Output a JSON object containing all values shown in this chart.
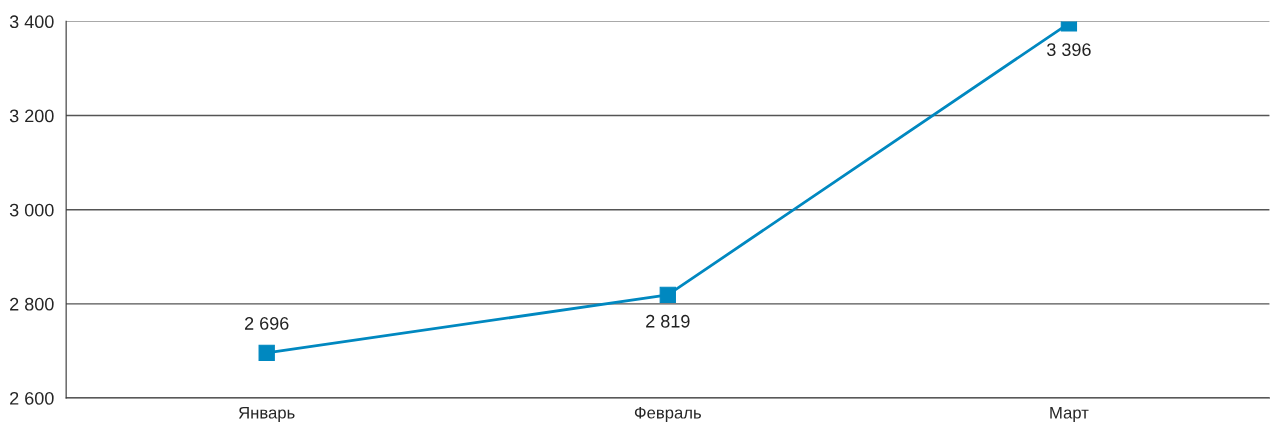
{
  "chart_data": {
    "type": "line",
    "categories": [
      "Январь",
      "Февраль",
      "Март"
    ],
    "series": [
      {
        "color": "#0088c0",
        "values": [
          2696,
          2819,
          3396
        ],
        "value_labels": [
          "2 696",
          "2 819",
          "3 396"
        ]
      }
    ],
    "marker": "square",
    "ylim": [
      2600,
      3400
    ],
    "yticks": [
      {
        "value": 2600,
        "label": "2 600"
      },
      {
        "value": 2800,
        "label": "2 800"
      },
      {
        "value": 3000,
        "label": "3 000"
      },
      {
        "value": 3200,
        "label": "3 200"
      },
      {
        "value": 3400,
        "label": "3 400"
      }
    ],
    "grid": "y"
  }
}
